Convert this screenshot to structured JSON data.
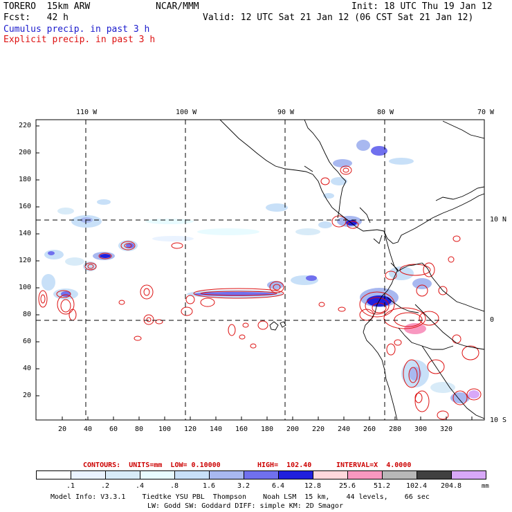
{
  "header": {
    "model": "TORERO  15km ARW",
    "org": "NCAR/MMM",
    "init": "Init: 18 UTC Thu 19 Jan 12",
    "fcst": "Fcst:   42 h",
    "valid": "Valid: 12 UTC Sat 21 Jan 12 (06 CST Sat 21 Jan 12)",
    "cumulus_label": "Cumulus precip. in past 3 h",
    "explicit_label": "Explicit precip. in past 3 h"
  },
  "colors": {
    "cumulus": "#1a1acc",
    "explicit": "#dd1111",
    "contour_info": "#cc0000"
  },
  "map": {
    "lon_labels": [
      "110 W",
      "100 W",
      "90 W",
      "80 W",
      "70 W"
    ],
    "lat_labels": [
      "10 N",
      "0",
      "10 S"
    ],
    "y_ticks": [
      "220",
      "200",
      "180",
      "160",
      "140",
      "120",
      "100",
      "80",
      "60",
      "40",
      "20"
    ],
    "x_ticks": [
      "20",
      "40",
      "60",
      "80",
      "100",
      "120",
      "140",
      "160",
      "180",
      "200",
      "220",
      "240",
      "260",
      "280",
      "300",
      "320"
    ]
  },
  "contours": {
    "units": "CONTOURS:  UNITS=mm  LOW= 0.10000",
    "high": "HIGH=  102.40",
    "interval": "INTERVAL=X  4.0000"
  },
  "colorbar": {
    "labels": [
      ".1",
      ".2",
      ".4",
      ".8",
      "1.6",
      "3.2",
      "6.4",
      "12.8",
      "25.6",
      "51.2",
      "102.4",
      "204.8"
    ],
    "unit": "mm",
    "colors": [
      "#ffffff",
      "#eaf3ff",
      "#d8ebf8",
      "#e8fbff",
      "#c8e0f8",
      "#a8b8f0",
      "#7070ee",
      "#2020dd",
      "#ffd8dc",
      "#f898c0",
      "#b8b8b8",
      "#404040",
      "#d8a8f8"
    ]
  },
  "footer": {
    "line1": "Model Info: V3.3.1    Tiedtke YSU PBL  Thompson    Noah LSM  15 km,    44 levels,    66 sec",
    "line2": "LW: Godd SW: Goddard DIFF: simple KM: 2D Smagor"
  }
}
